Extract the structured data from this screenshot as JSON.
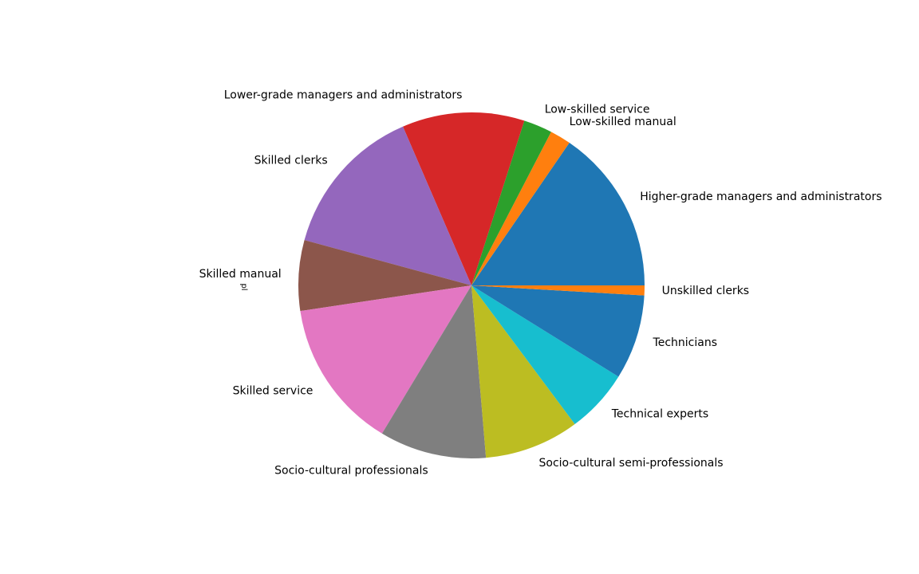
{
  "chart_data": {
    "type": "pie",
    "ylabel": "pl",
    "start_angle_deg": 0,
    "direction": "counterclockwise",
    "slices": [
      {
        "label": "Higher-grade managers and administrators",
        "value": 15.0,
        "color": "#1f77b4"
      },
      {
        "label": "Low-skilled manual",
        "value": 1.9,
        "color": "#ff7f0e"
      },
      {
        "label": "Low-skilled service",
        "value": 2.6,
        "color": "#2ca02c"
      },
      {
        "label": "Lower-grade managers and administrators",
        "value": 11.1,
        "color": "#d62728"
      },
      {
        "label": "Skilled clerks",
        "value": 13.9,
        "color": "#9467bd"
      },
      {
        "label": "Skilled manual",
        "value": 6.4,
        "color": "#8c564b"
      },
      {
        "label": "Skilled service",
        "value": 13.6,
        "color": "#e377c2"
      },
      {
        "label": "Socio-cultural professionals",
        "value": 9.7,
        "color": "#7f7f7f"
      },
      {
        "label": "Socio-cultural semi-professionals",
        "value": 8.6,
        "color": "#bcbd22"
      },
      {
        "label": "Technical experts",
        "value": 5.8,
        "color": "#17becf"
      },
      {
        "label": "Technicians",
        "value": 7.7,
        "color": "#1f77b4"
      },
      {
        "label": "Unskilled clerks",
        "value": 0.9,
        "color": "#ff7f0e"
      }
    ]
  }
}
